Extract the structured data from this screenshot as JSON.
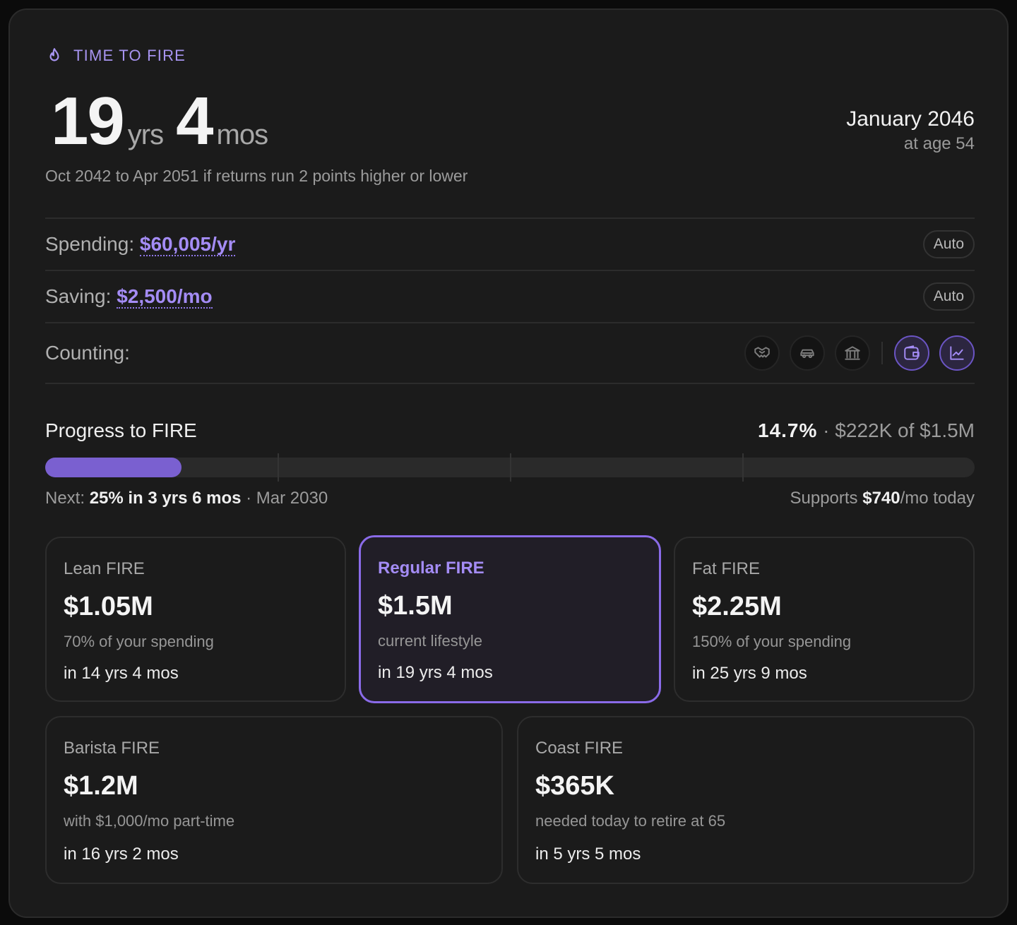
{
  "header": {
    "eyebrow": "TIME TO FIRE",
    "years_value": "19",
    "years_unit": "yrs",
    "months_value": "4",
    "months_unit": "mos",
    "date": "January 2046",
    "age_text": "at age 54",
    "range_text": "Oct 2042 to Apr 2051 if returns run 2 points higher or lower"
  },
  "spending": {
    "label": "Spending:",
    "value": "$60,005/yr",
    "mode": "Auto"
  },
  "saving": {
    "label": "Saving:",
    "value": "$2,500/mo",
    "mode": "Auto"
  },
  "counting": {
    "label": "Counting:",
    "toggles": [
      {
        "icon": "handshake-icon",
        "active": false
      },
      {
        "icon": "car-icon",
        "active": false
      },
      {
        "icon": "bank-icon",
        "active": false
      },
      {
        "icon": "wallet-icon",
        "active": true
      },
      {
        "icon": "chart-line-icon",
        "active": true
      }
    ]
  },
  "progress": {
    "title": "Progress to FIRE",
    "percent_text": "14.7%",
    "amount_text": "$222K of $1.5M",
    "percent": 14.7,
    "milestone_percents": [
      25,
      50,
      75
    ],
    "next_label": "Next:",
    "next_value": "25% in 3 yrs 6 mos",
    "next_date": "Mar 2030",
    "supports_prefix": "Supports",
    "supports_value": "$740",
    "supports_suffix": "/mo today"
  },
  "tiers": [
    {
      "name": "Lean FIRE",
      "amount": "$1.05M",
      "desc": "70% of your spending",
      "eta": "in 14 yrs 4 mos"
    },
    {
      "name": "Regular FIRE",
      "amount": "$1.5M",
      "desc": "current lifestyle",
      "eta": "in 19 yrs 4 mos"
    },
    {
      "name": "Fat FIRE",
      "amount": "$2.25M",
      "desc": "150% of your spending",
      "eta": "in 25 yrs 9 mos"
    },
    {
      "name": "Barista FIRE",
      "amount": "$1.2M",
      "desc": "with $1,000/mo part-time",
      "eta": "in 16 yrs 2 mos"
    },
    {
      "name": "Coast FIRE",
      "amount": "$365K",
      "desc": "needed today to retire at 65",
      "eta": "in 5 yrs 5 mos"
    }
  ],
  "colors": {
    "accent": "#a48cf5",
    "bar_fill": "#7a60d0",
    "card_bg": "#1b1b1b"
  }
}
